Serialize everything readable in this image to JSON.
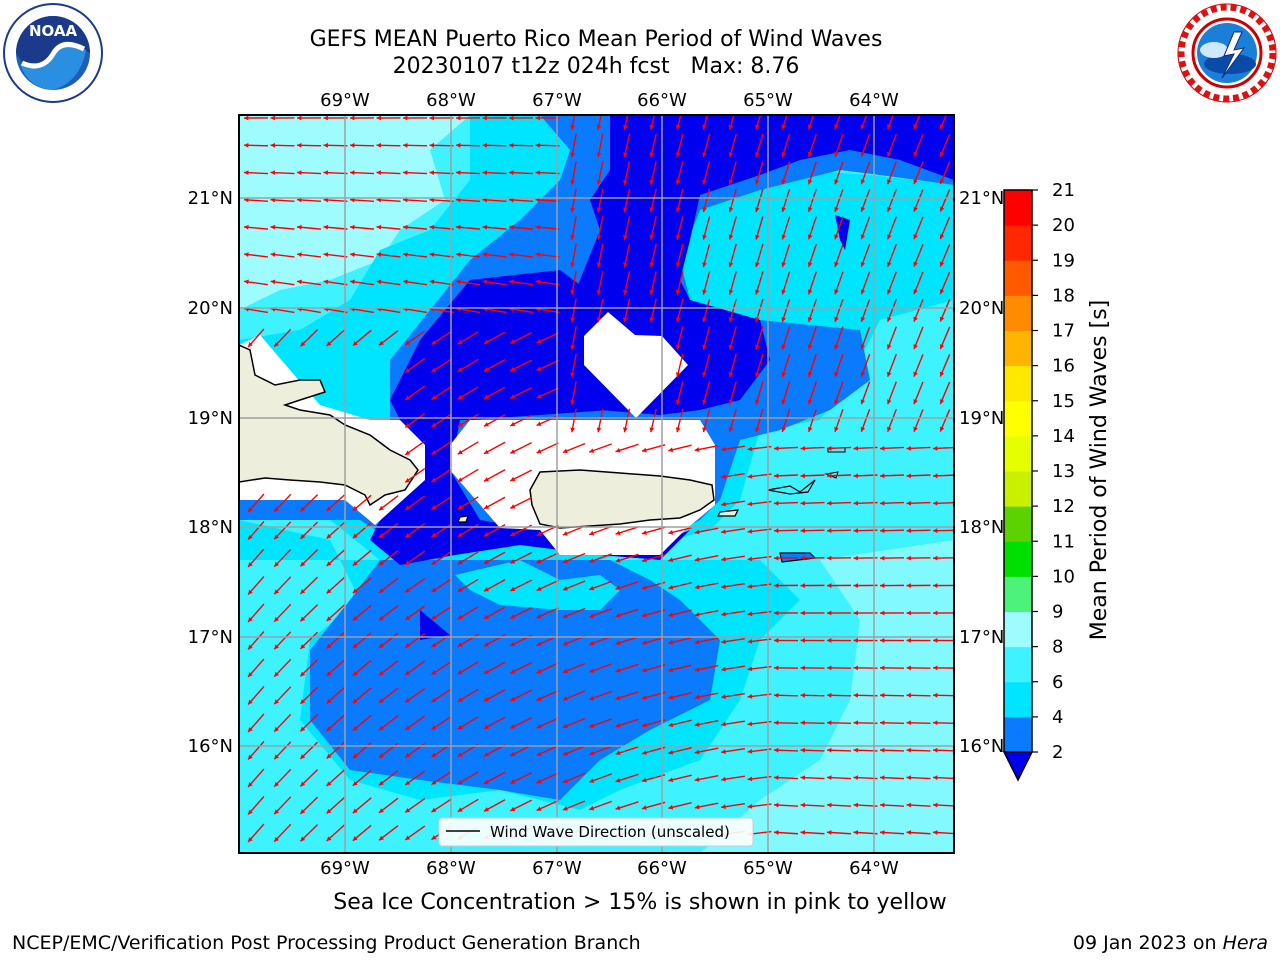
{
  "header": {
    "title_line1": "GEFS MEAN Puerto Rico Mean Period of Wind Waves",
    "title_line2": "20230107 t12z 024h fcst   Max: 8.76"
  },
  "logos": {
    "left": "noaa-logo",
    "right": "nws-logo"
  },
  "map": {
    "lon_labels": [
      "69°W",
      "68°W",
      "67°W",
      "66°W",
      "65°W",
      "64°W"
    ],
    "lat_labels": [
      "21°N",
      "20°N",
      "19°N",
      "18°N",
      "17°N",
      "16°N"
    ],
    "legend_label": "Wind Wave Direction (unscaled)",
    "arrow_color": "#ff0000",
    "land_color": "#eeeedc"
  },
  "colorbar": {
    "label": "Mean Period of Wind Waves [s]",
    "ticks": [
      "2",
      "4",
      "6",
      "8",
      "9",
      "10",
      "11",
      "12",
      "13",
      "14",
      "15",
      "16",
      "17",
      "18",
      "19",
      "20",
      "21"
    ],
    "colors": [
      "#0a7aff",
      "#00e5ff",
      "#3ff2ff",
      "#9efcff",
      "#4cf27a",
      "#00e000",
      "#5cd200",
      "#c8f000",
      "#e6ff00",
      "#ffff00",
      "#ffe800",
      "#ffb400",
      "#ff8c00",
      "#ff5a00",
      "#ff2800",
      "#ff0000"
    ],
    "under_color": "#0000ee"
  },
  "notes": {
    "ice": "Sea Ice Concentration > 15% is shown in pink to yellow"
  },
  "footer": {
    "left": "NCEP/EMC/Verification Post Processing Product Generation Branch",
    "right_prefix": "09 Jan 2023 on ",
    "right_host": "Hera"
  }
}
